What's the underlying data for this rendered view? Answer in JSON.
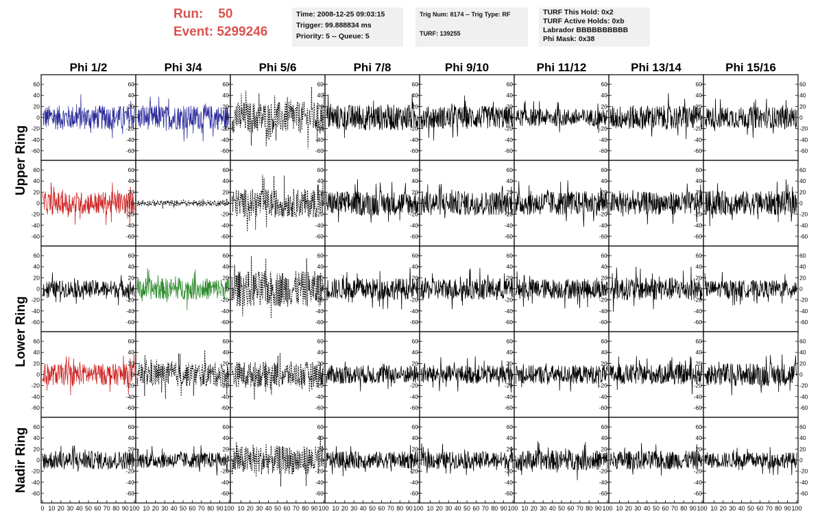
{
  "header": {
    "run_label": "Run:",
    "run_value": "50",
    "event_label": "Event:",
    "event_value": "5299246",
    "box1": [
      "Time: 2008-12-25 09:03:15",
      "Trigger: 99.888834 ms",
      "Priority: 5 -- Queue: 5"
    ],
    "box2": [
      "Trig Num: 8174 -- Trig Type: RF",
      "",
      "TURF: 139255"
    ],
    "box3": [
      "TURF This Hold: 0x2",
      "TURF Active Holds: 0xb",
      "Labrador BBBBBBBBBB",
      "Phi Mask: 0x38"
    ]
  },
  "chart_data": {
    "type": "line",
    "title": "",
    "xlabel": "",
    "ylabel": "",
    "xlim": [
      0,
      100
    ],
    "ylim": [
      -70,
      70
    ],
    "y_ticks": [
      -60,
      -40,
      -20,
      0,
      20,
      40,
      60
    ],
    "x_ticks": [
      0,
      10,
      20,
      30,
      40,
      50,
      60,
      70,
      80,
      90,
      100
    ],
    "columns": [
      "Phi 1/2",
      "Phi 3/4",
      "Phi 5/6",
      "Phi 7/8",
      "Phi 9/10",
      "Phi 11/12",
      "Phi 13/14",
      "Phi 15/16"
    ],
    "row_labels": [
      {
        "text": "Upper Ring",
        "rows": [
          0,
          1
        ]
      },
      {
        "text": "Lower Ring",
        "rows": [
          2,
          3
        ]
      },
      {
        "text": "Nadir Ring",
        "rows": [
          4,
          4
        ]
      }
    ],
    "panels": [
      [
        {
          "color": "#2b2b9b",
          "style": "solid",
          "amp": 17
        },
        {
          "color": "#2b2b9b",
          "style": "solid",
          "amp": 17
        },
        {
          "color": "#000000",
          "style": "dashed",
          "amp": 22
        },
        {
          "color": "#000000",
          "style": "solid",
          "amp": 18
        },
        {
          "color": "#000000",
          "style": "solid",
          "amp": 16
        },
        {
          "color": "#000000",
          "style": "solid",
          "amp": 12
        },
        {
          "color": "#000000",
          "style": "solid",
          "amp": 17
        },
        {
          "color": "#000000",
          "style": "solid",
          "amp": 15
        }
      ],
      [
        {
          "color": "#cc2222",
          "style": "solid",
          "amp": 16
        },
        {
          "color": "#000000",
          "style": "dashed",
          "amp": 4
        },
        {
          "color": "#000000",
          "style": "dashed",
          "amp": 20
        },
        {
          "color": "#000000",
          "style": "solid",
          "amp": 17
        },
        {
          "color": "#000000",
          "style": "solid",
          "amp": 17
        },
        {
          "color": "#000000",
          "style": "solid",
          "amp": 17
        },
        {
          "color": "#000000",
          "style": "solid",
          "amp": 16
        },
        {
          "color": "#000000",
          "style": "solid",
          "amp": 17
        }
      ],
      [
        {
          "color": "#000000",
          "style": "solid",
          "amp": 12
        },
        {
          "color": "#2a8a2a",
          "style": "solid",
          "amp": 15
        },
        {
          "color": "#000000",
          "style": "dashed",
          "amp": 25
        },
        {
          "color": "#000000",
          "style": "solid",
          "amp": 15
        },
        {
          "color": "#000000",
          "style": "solid",
          "amp": 15
        },
        {
          "color": "#000000",
          "style": "solid",
          "amp": 14
        },
        {
          "color": "#000000",
          "style": "solid",
          "amp": 16
        },
        {
          "color": "#000000",
          "style": "solid",
          "amp": 12
        }
      ],
      [
        {
          "color": "#cc2222",
          "style": "solid",
          "amp": 15
        },
        {
          "color": "#000000",
          "style": "dashed",
          "amp": 17
        },
        {
          "color": "#000000",
          "style": "dashed",
          "amp": 18
        },
        {
          "color": "#000000",
          "style": "solid",
          "amp": 13
        },
        {
          "color": "#000000",
          "style": "solid",
          "amp": 13
        },
        {
          "color": "#000000",
          "style": "solid",
          "amp": 13
        },
        {
          "color": "#000000",
          "style": "solid",
          "amp": 14
        },
        {
          "color": "#000000",
          "style": "solid",
          "amp": 16
        }
      ],
      [
        {
          "color": "#000000",
          "style": "solid",
          "amp": 13
        },
        {
          "color": "#000000",
          "style": "solid",
          "amp": 11
        },
        {
          "color": "#000000",
          "style": "dashed",
          "amp": 20
        },
        {
          "color": "#000000",
          "style": "solid",
          "amp": 12
        },
        {
          "color": "#000000",
          "style": "solid",
          "amp": 12
        },
        {
          "color": "#000000",
          "style": "solid",
          "amp": 14
        },
        {
          "color": "#000000",
          "style": "solid",
          "amp": 13
        },
        {
          "color": "#000000",
          "style": "solid",
          "amp": 11
        }
      ]
    ]
  }
}
